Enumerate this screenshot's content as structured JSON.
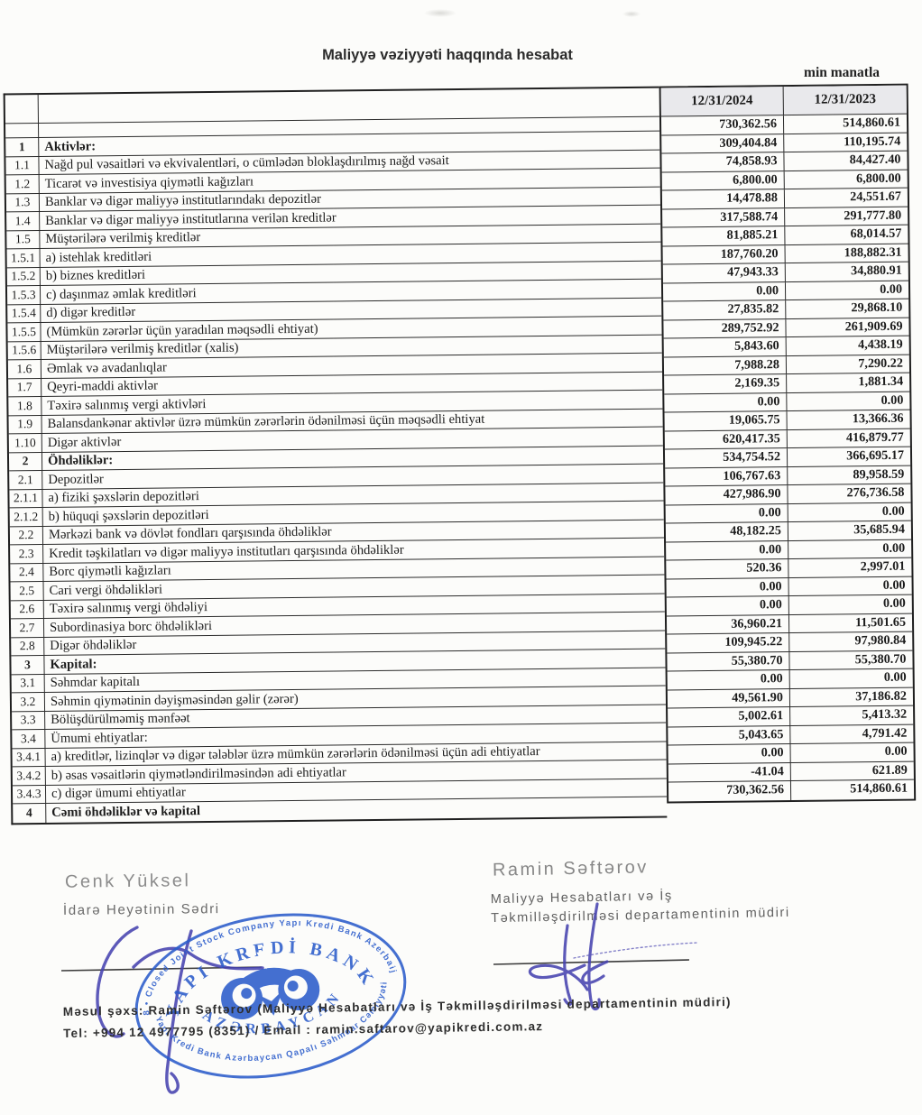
{
  "doc": {
    "title": "Maliyyə vəziyyəti haqqında hesabat",
    "unit_note": "min manatla"
  },
  "table": {
    "date_columns": [
      "12/31/2024",
      "12/31/2023"
    ],
    "rows": [
      {
        "n": "1",
        "l": "Aktivlər:",
        "v1": "730,362.56",
        "v2": "514,860.61",
        "b": true
      },
      {
        "n": "1.1",
        "l": "Nağd pul vəsaitləri və  ekvivalentləri, o cümlədən bloklaşdırılmış nağd vəsait",
        "v1": "309,404.84",
        "v2": "110,195.74",
        "b": false
      },
      {
        "n": "1.2",
        "l": "Ticarət və investisiya qiymətli kağızları",
        "v1": "74,858.93",
        "v2": "84,427.40",
        "b": false
      },
      {
        "n": "1.3",
        "l": "Banklar və digər maliyyə institutlarındakı depozitlər",
        "v1": "6,800.00",
        "v2": "6,800.00",
        "b": false
      },
      {
        "n": "1.4",
        "l": "Banklar və digər maliyyə institutlarına verilən kreditlər",
        "v1": "14,478.88",
        "v2": "24,551.67",
        "b": false
      },
      {
        "n": "1.5",
        "l": "Müştərilərə verilmiş kreditlər",
        "v1": "317,588.74",
        "v2": "291,777.80",
        "b": false
      },
      {
        "n": "1.5.1",
        "l": "a) istehlak kreditləri",
        "v1": "81,885.21",
        "v2": "68,014.57",
        "b": false
      },
      {
        "n": "1.5.2",
        "l": "b) biznes kreditləri",
        "v1": "187,760.20",
        "v2": "188,882.31",
        "b": false
      },
      {
        "n": "1.5.3",
        "l": "c) daşınmaz əmlak kreditləri",
        "v1": "47,943.33",
        "v2": "34,880.91",
        "b": false
      },
      {
        "n": "1.5.4",
        "l": "d) digər kreditlər",
        "v1": "0.00",
        "v2": "0.00",
        "b": false
      },
      {
        "n": "1.5.5",
        "l": "(Mümkün zərərlər üçün yaradılan məqsədli ehtiyat)",
        "v1": "27,835.82",
        "v2": "29,868.10",
        "b": false
      },
      {
        "n": "1.5.6",
        "l": "Müştərilərə verilmiş kreditlər (xalis)",
        "v1": "289,752.92",
        "v2": "261,909.69",
        "b": false
      },
      {
        "n": "1.6",
        "l": "Əmlak və avadanlıqlar",
        "v1": "5,843.60",
        "v2": "4,438.19",
        "b": false
      },
      {
        "n": "1.7",
        "l": "Qeyri-maddi aktivlər",
        "v1": "7,988.28",
        "v2": "7,290.22",
        "b": false
      },
      {
        "n": "1.8",
        "l": "Təxirə salınmış vergi aktivləri",
        "v1": "2,169.35",
        "v2": "1,881.34",
        "b": false
      },
      {
        "n": "1.9",
        "l": "Balansdankənar aktivlər üzrə mümkün zərərlərin ödənilməsi üçün məqsədli ehtiyat",
        "v1": "0.00",
        "v2": "0.00",
        "b": false
      },
      {
        "n": "1.10",
        "l": "Digər aktivlər",
        "v1": "19,065.75",
        "v2": "13,366.36",
        "b": false
      },
      {
        "n": "2",
        "l": "Öhdəliklər:",
        "v1": "620,417.35",
        "v2": "416,879.77",
        "b": true
      },
      {
        "n": "2.1",
        "l": "Depozitlər",
        "v1": "534,754.52",
        "v2": "366,695.17",
        "b": false
      },
      {
        "n": "2.1.1",
        "l": "a) fiziki şəxslərin depozitləri",
        "v1": "106,767.63",
        "v2": "89,958.59",
        "b": false
      },
      {
        "n": "2.1.2",
        "l": "b) hüquqi şəxslərin depozitləri",
        "v1": "427,986.90",
        "v2": "276,736.58",
        "b": false
      },
      {
        "n": "2.2",
        "l": "Mərkəzi bank və dövlət fondları qarşısında öhdəliklər",
        "v1": "0.00",
        "v2": "0.00",
        "b": false
      },
      {
        "n": "2.3",
        "l": "Kredit təşkilatları və digər maliyyə institutları qarşısında öhdəliklər",
        "v1": "48,182.25",
        "v2": "35,685.94",
        "b": false
      },
      {
        "n": "2.4",
        "l": "Borc qiymətli kağızları",
        "v1": "0.00",
        "v2": "0.00",
        "b": false
      },
      {
        "n": "2.5",
        "l": "Cari vergi öhdəlikləri",
        "v1": "520.36",
        "v2": "2,997.01",
        "b": false
      },
      {
        "n": "2.6",
        "l": "Təxirə salınmış vergi öhdəliyi",
        "v1": "0.00",
        "v2": "0.00",
        "b": false
      },
      {
        "n": "2.7",
        "l": "Subordinasiya borc öhdəlikləri",
        "v1": "0.00",
        "v2": "0.00",
        "b": false
      },
      {
        "n": "2.8",
        "l": "Digər öhdəliklər",
        "v1": "36,960.21",
        "v2": "11,501.65",
        "b": false
      },
      {
        "n": "3",
        "l": "Kapital:",
        "v1": "109,945.22",
        "v2": "97,980.84",
        "b": true
      },
      {
        "n": "3.1",
        "l": "Səhmdar kapitalı",
        "v1": "55,380.70",
        "v2": "55,380.70",
        "b": false
      },
      {
        "n": "3.2",
        "l": "Səhmin qiymətinin dəyişməsindən gəlir (zərər)",
        "v1": "0.00",
        "v2": "0.00",
        "b": false
      },
      {
        "n": "3.3",
        "l": "Bölüşdürülməmiş mənfəət",
        "v1": "49,561.90",
        "v2": "37,186.82",
        "b": false
      },
      {
        "n": "3.4",
        "l": "Ümumi ehtiyatlar:",
        "v1": "5,002.61",
        "v2": "5,413.32",
        "b": false
      },
      {
        "n": "3.4.1",
        "l": "a) kreditlər, lizinqlər və digər tələblər üzrə mümkün zərərlərin ödənilməsi üçün adi ehtiyatlar",
        "v1": "5,043.65",
        "v2": "4,791.42",
        "b": false
      },
      {
        "n": "3.4.2",
        "l": "b) əsas vəsaitlərin qiymətləndirilməsindən adi ehtiyatlar",
        "v1": "0.00",
        "v2": "0.00",
        "b": false
      },
      {
        "n": "3.4.3",
        "l": "c) digər ümumi ehtiyatlar",
        "v1": "-41.04",
        "v2": "621.89",
        "b": false
      },
      {
        "n": "4",
        "l": "Cəmi öhdəliklər və kapital",
        "v1": "730,362.56",
        "v2": "514,860.61",
        "b": true
      }
    ]
  },
  "signatories": {
    "left": {
      "name": "Cenk Yüksel",
      "title": "İdarə Heyətinin Sədri"
    },
    "right": {
      "name": "Ramin Səftərov",
      "title_line1": "Maliyyə Hesabatları və İş",
      "title_line2": "Təkmilləşdirilməsi departamentinin müdiri"
    }
  },
  "stamp": {
    "ring_top": "1998 • Closed Joint Stock Company Yapı Kredi Bank Azerbaijan •",
    "ring_bottom": "Yapı Kredi Bank Azərbaycan Qapalı Səhmdar Cəmiyyəti",
    "arc_name": "YAPI KREDİ BANK",
    "arc_country": "AZƏRBAYCAN",
    "ink": "#2b5ccb"
  },
  "contact": {
    "line1": "Məsul şəxs:  Ramin Səftərov  (Maliyyə Hesabatları və İş Təkmilləşdirilməsi departamentinin müdiri)",
    "line2": "Tel:  +994 12 4977795 (8351) / Email : ramin.saftarov@yapikredi.com.az"
  }
}
